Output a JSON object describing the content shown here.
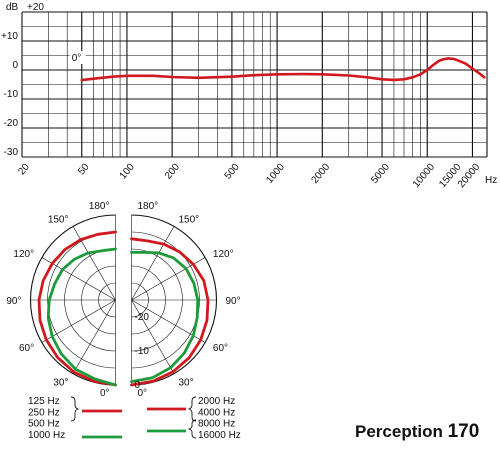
{
  "product": {
    "name": "Perception",
    "model": "170"
  },
  "chart_data": [
    {
      "type": "line",
      "xscale": "log",
      "xlim": [
        20,
        25000
      ],
      "ylim": [
        -30,
        20
      ],
      "ylabel": "dB",
      "xunit": "Hz",
      "y_tick_labels": [
        "+20",
        "+10",
        "0",
        "-10",
        "-20",
        "-30"
      ],
      "y_ticks": [
        20,
        10,
        0,
        -10,
        -20,
        -30
      ],
      "x_tick_labels": [
        "20",
        "50",
        "100",
        "200",
        "500",
        "1000",
        "2000",
        "5000",
        "10000",
        "15000",
        "20000"
      ],
      "x_ticks": [
        20,
        50,
        100,
        200,
        500,
        1000,
        2000,
        5000,
        10000,
        15000,
        20000
      ],
      "annotation": "0°",
      "grid": true,
      "series": [
        {
          "color": "#d0191f",
          "x": [
            50,
            60,
            80,
            100,
            150,
            200,
            300,
            500,
            700,
            1000,
            1500,
            2000,
            3000,
            4000,
            5000,
            6000,
            7000,
            8000,
            9000,
            10000,
            11000,
            12000,
            13000,
            14000,
            15000,
            16000,
            18000,
            20000,
            22000,
            24000
          ],
          "y": [
            -3.5,
            -3,
            -2.3,
            -2,
            -2,
            -2.4,
            -2.7,
            -2.3,
            -1.8,
            -1.5,
            -1.4,
            -1.5,
            -1.9,
            -2.5,
            -3.2,
            -3.4,
            -3.2,
            -2.5,
            -1.5,
            0,
            1.8,
            3.2,
            3.8,
            4,
            3.8,
            3.3,
            2.2,
            0.5,
            -1,
            -2.5
          ]
        }
      ]
    },
    {
      "type": "polar",
      "angle_labels_left": [
        "180°",
        "150°",
        "120°",
        "90°",
        "60°",
        "30°",
        "0°"
      ],
      "angle_labels_right": [
        "180°",
        "150°",
        "120°",
        "90°",
        "60°",
        "30°",
        "0°"
      ],
      "radial_labels": [
        "-20",
        "-10",
        "0"
      ],
      "radial_ticks": [
        -20,
        -10,
        0
      ],
      "rlim": [
        -25,
        0
      ],
      "angles_deg": [
        0,
        15,
        30,
        45,
        60,
        75,
        90,
        105,
        120,
        135,
        150,
        165,
        180
      ],
      "left_series": [
        {
          "color": "#d0191f",
          "frequencies": [
            "125 Hz",
            "250 Hz",
            "500 Hz"
          ],
          "values": [
            0,
            -0.3,
            -0.5,
            -1,
            -1.5,
            -2,
            -2.5,
            -3,
            -3.5,
            -4,
            -4.5,
            -5,
            -5
          ]
        },
        {
          "color": "#1d9a3a",
          "frequencies": [
            "1000 Hz"
          ],
          "values": [
            0,
            -1,
            -1.5,
            -2.5,
            -3.5,
            -4.5,
            -5.5,
            -6.5,
            -7,
            -8,
            -9,
            -10,
            -10
          ]
        }
      ],
      "right_series": [
        {
          "color": "#d0191f",
          "frequencies": [
            "2000 Hz",
            "4000 Hz"
          ],
          "values": [
            0,
            -0.3,
            -0.6,
            -1,
            -1.5,
            -2,
            -2.5,
            -3,
            -4,
            -5,
            -6,
            -7,
            -7
          ]
        },
        {
          "color": "#1d9a3a",
          "frequencies": [
            "8000 Hz",
            "16000 Hz"
          ],
          "values": [
            -1,
            -1.3,
            -2,
            -3,
            -4,
            -5,
            -5.5,
            -6,
            -6.5,
            -7.5,
            -9,
            -10.5,
            -11
          ]
        }
      ]
    }
  ]
}
